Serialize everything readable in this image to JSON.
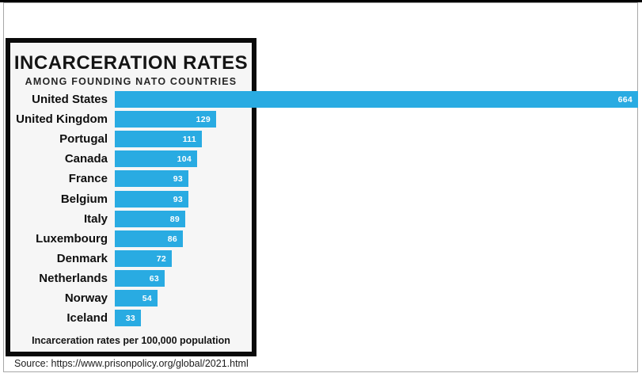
{
  "page": {
    "source_note": "Source: https://www.prisonpolicy.org/global/2021.html"
  },
  "chart": {
    "title": "INCARCERATION RATES",
    "subtitle": "AMONG FOUNDING NATO COUNTRIES",
    "footnote": "Incarceration rates per 100,000 population"
  },
  "chart_data": {
    "type": "bar",
    "orientation": "horizontal",
    "title": "INCARCERATION RATES",
    "subtitle": "AMONG FOUNDING NATO COUNTRIES",
    "xlabel": "Incarceration rates per 100,000 population",
    "categories": [
      "United States",
      "United Kingdom",
      "Portugal",
      "Canada",
      "France",
      "Belgium",
      "Italy",
      "Luxembourg",
      "Denmark",
      "Netherlands",
      "Norway",
      "Iceland"
    ],
    "values": [
      664,
      129,
      111,
      104,
      93,
      93,
      89,
      86,
      72,
      63,
      54,
      33
    ],
    "xlim": [
      0,
      664
    ],
    "value_labels": true,
    "grid": false,
    "legend": false,
    "bar_color": "#29abe2",
    "value_label_color": "#ffffff",
    "source_note": "Source: https://www.prisonpolicy.org/global/2021.html"
  }
}
